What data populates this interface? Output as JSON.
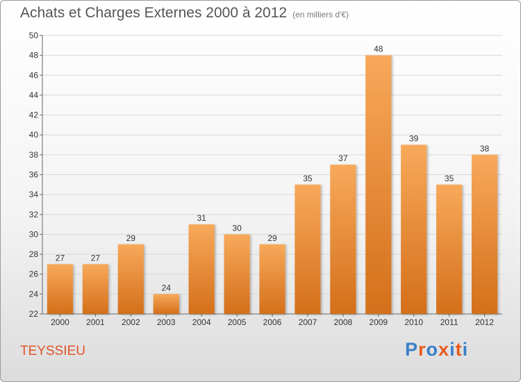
{
  "title": "Achats et Charges Externes 2000 à 2012",
  "subtitle": "(en milliers d'€)",
  "place": "TEYSSIEU",
  "logo": {
    "text": "Proxiti",
    "letter_colors": [
      "#3a7fc8",
      "#e85a1c",
      "#3a7fc8",
      "#e85a1c",
      "#3a7fc8",
      "#e85a1c",
      "#3a7fc8"
    ]
  },
  "colors": {
    "bar_light": "#f7a95a",
    "bar_dark": "#d46f1a",
    "grid": "#d8d8d8",
    "axis": "#666666",
    "text": "#333333"
  },
  "chart_data": {
    "type": "bar",
    "title": "Achats et Charges Externes 2000 à 2012",
    "xlabel": "",
    "ylabel": "",
    "categories": [
      "2000",
      "2001",
      "2002",
      "2003",
      "2004",
      "2005",
      "2006",
      "2007",
      "2008",
      "2009",
      "2010",
      "2011",
      "2012"
    ],
    "values": [
      27,
      27,
      29,
      24,
      31,
      30,
      29,
      35,
      37,
      48,
      39,
      35,
      38
    ],
    "ylim": [
      22,
      50
    ],
    "yticks": [
      22,
      24,
      26,
      28,
      30,
      32,
      34,
      36,
      38,
      40,
      42,
      44,
      46,
      48,
      50
    ],
    "grid": true,
    "data_labels": true
  }
}
